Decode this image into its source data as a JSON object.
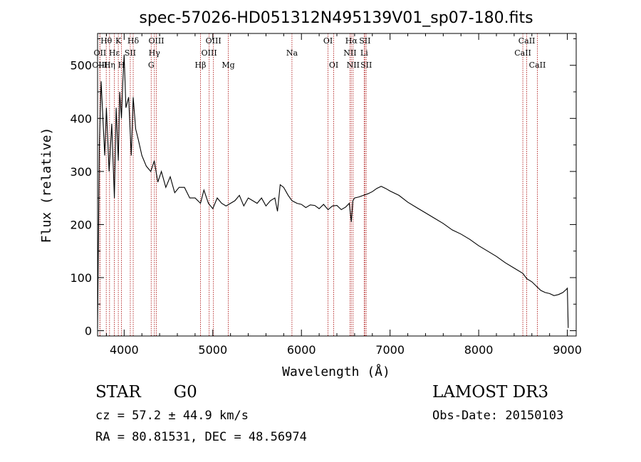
{
  "chart_data": {
    "type": "line",
    "title": "spec-57026-HD051312N495139V01_sp07-180.fits",
    "xlabel": "Wavelength (Å)",
    "ylabel": "Flux (relative)",
    "xlim": [
      3700,
      9100
    ],
    "ylim": [
      -10,
      560
    ],
    "xticks": [
      4000,
      5000,
      6000,
      7000,
      8000,
      9000
    ],
    "yticks": [
      0,
      100,
      200,
      300,
      400,
      500
    ],
    "xtick_labels": [
      "4000",
      "5000",
      "6000",
      "7000",
      "8000",
      "9000"
    ],
    "ytick_labels": [
      "0",
      "100",
      "200",
      "300",
      "400",
      "500"
    ],
    "series": [
      {
        "name": "flux",
        "x": [
          3700,
          3720,
          3740,
          3760,
          3780,
          3800,
          3830,
          3860,
          3890,
          3910,
          3934,
          3950,
          3969,
          3985,
          4000,
          4020,
          4050,
          4080,
          4102,
          4130,
          4160,
          4200,
          4250,
          4300,
          4340,
          4380,
          4420,
          4470,
          4520,
          4570,
          4620,
          4680,
          4740,
          4800,
          4861,
          4900,
          4950,
          5000,
          5050,
          5100,
          5150,
          5200,
          5250,
          5300,
          5350,
          5400,
          5450,
          5500,
          5550,
          5600,
          5650,
          5700,
          5730,
          5760,
          5800,
          5850,
          5893,
          5950,
          6000,
          6050,
          6100,
          6150,
          6200,
          6250,
          6300,
          6350,
          6400,
          6450,
          6500,
          6540,
          6563,
          6580,
          6600,
          6650,
          6700,
          6750,
          6800,
          6850,
          6900,
          6950,
          7000,
          7100,
          7200,
          7300,
          7400,
          7500,
          7600,
          7700,
          7800,
          7900,
          8000,
          8100,
          8200,
          8300,
          8400,
          8498,
          8542,
          8600,
          8662,
          8700,
          8750,
          8800,
          8850,
          8900,
          8950,
          8990,
          9000,
          9010
        ],
        "y": [
          5,
          350,
          470,
          400,
          330,
          420,
          300,
          390,
          250,
          420,
          320,
          450,
          400,
          470,
          520,
          420,
          440,
          330,
          440,
          380,
          360,
          330,
          310,
          300,
          320,
          280,
          300,
          270,
          290,
          260,
          270,
          270,
          250,
          250,
          240,
          265,
          240,
          230,
          250,
          240,
          235,
          240,
          245,
          255,
          235,
          250,
          245,
          240,
          250,
          235,
          245,
          250,
          225,
          275,
          270,
          255,
          245,
          240,
          238,
          232,
          237,
          236,
          230,
          238,
          228,
          235,
          236,
          228,
          233,
          240,
          205,
          245,
          250,
          252,
          255,
          258,
          262,
          268,
          272,
          268,
          263,
          255,
          242,
          232,
          222,
          212,
          202,
          190,
          182,
          172,
          160,
          150,
          140,
          128,
          118,
          108,
          98,
          92,
          82,
          76,
          72,
          70,
          66,
          68,
          72,
          78,
          80,
          5
        ]
      }
    ],
    "annotations": [
      {
        "label": "Hθ",
        "x": 3798,
        "row": 1
      },
      {
        "label": "OII",
        "x": 3727,
        "row": 2
      },
      {
        "label": "OIII",
        "x": 3726,
        "row": 3
      },
      {
        "label": "Hη",
        "x": 3835,
        "row": 3
      },
      {
        "label": "Hε",
        "x": 3889,
        "row": 2
      },
      {
        "label": "K",
        "x": 3934,
        "row": 1
      },
      {
        "label": "H",
        "x": 3969,
        "row": 3
      },
      {
        "label": "Hδ",
        "x": 4102,
        "row": 1
      },
      {
        "label": "SII",
        "x": 4069,
        "row": 2
      },
      {
        "label": "OIII",
        "x": 4363,
        "row": 1
      },
      {
        "label": "Hγ",
        "x": 4341,
        "row": 2
      },
      {
        "label": "G",
        "x": 4305,
        "row": 3
      },
      {
        "label": "Hβ",
        "x": 4861,
        "row": 3
      },
      {
        "label": "OIII",
        "x": 5007,
        "row": 1
      },
      {
        "label": "OIII",
        "x": 4959,
        "row": 2
      },
      {
        "label": "Mg",
        "x": 5175,
        "row": 3
      },
      {
        "label": "Na",
        "x": 5893,
        "row": 2
      },
      {
        "label": "OI",
        "x": 6300,
        "row": 1
      },
      {
        "label": "OI",
        "x": 6364,
        "row": 3
      },
      {
        "label": "Hα",
        "x": 6563,
        "row": 1
      },
      {
        "label": "SII",
        "x": 6716,
        "row": 1
      },
      {
        "label": "NII",
        "x": 6548,
        "row": 2
      },
      {
        "label": "Li",
        "x": 6708,
        "row": 2
      },
      {
        "label": "NII",
        "x": 6583,
        "row": 3
      },
      {
        "label": "SII",
        "x": 6731,
        "row": 3
      },
      {
        "label": "CaII",
        "x": 8498,
        "row": 2
      },
      {
        "label": "CaII",
        "x": 8542,
        "row": 1
      },
      {
        "label": "CaII",
        "x": 8662,
        "row": 3
      }
    ],
    "line_marks": [
      3726,
      3727,
      3798,
      3835,
      3889,
      3934,
      3969,
      4069,
      4102,
      4305,
      4341,
      4363,
      4861,
      4959,
      5007,
      5175,
      5893,
      6300,
      6364,
      6548,
      6563,
      6583,
      6708,
      6716,
      6731,
      8498,
      8542,
      8662
    ]
  },
  "info": {
    "class_label": "STAR",
    "subclass": "G0",
    "survey": "LAMOST DR3",
    "cz_line": "cz = 57.2 ± 44.9 km/s",
    "obs_date_line": "Obs-Date: 20150103",
    "coords_line": "RA =  80.81531, DEC =  48.56974"
  },
  "colors": {
    "axis": "#000000",
    "spectrum": "#000000",
    "line_mark": "#b22222"
  }
}
